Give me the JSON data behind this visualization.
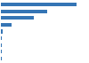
{
  "values": [
    1165,
    722,
    508,
    166,
    27,
    18,
    14,
    10,
    7
  ],
  "bar_color": "#3575b5",
  "background_color": "#ffffff",
  "grid_color": "#dddddd",
  "xlim": [
    0,
    1350
  ]
}
